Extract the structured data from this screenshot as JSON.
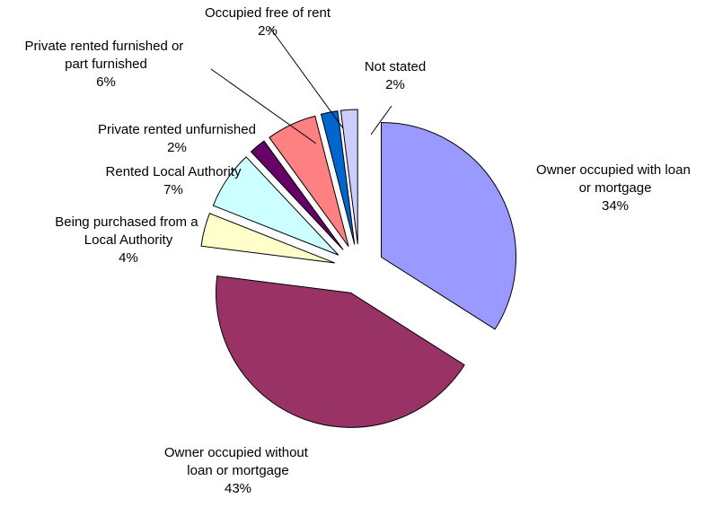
{
  "chart_data": {
    "type": "pie",
    "categories": [
      "Owner occupied with loan or mortgage",
      "Owner occupied without loan or mortgage",
      "Being purchased from a Local Authority",
      "Rented Local Authority",
      "Private rented unfurnished",
      "Private rented furnished or part furnished",
      "Occupied free of rent",
      "Not stated"
    ],
    "values": [
      34,
      43,
      4,
      7,
      2,
      6,
      2,
      2
    ],
    "value_labels": [
      "34%",
      "43%",
      "4%",
      "7%",
      "2%",
      "6%",
      "2%",
      "2%"
    ],
    "colors": [
      "#9999ff",
      "#993366",
      "#ffffcc",
      "#ccffff",
      "#660066",
      "#ff8080",
      "#0066cc",
      "#ccccff"
    ]
  }
}
